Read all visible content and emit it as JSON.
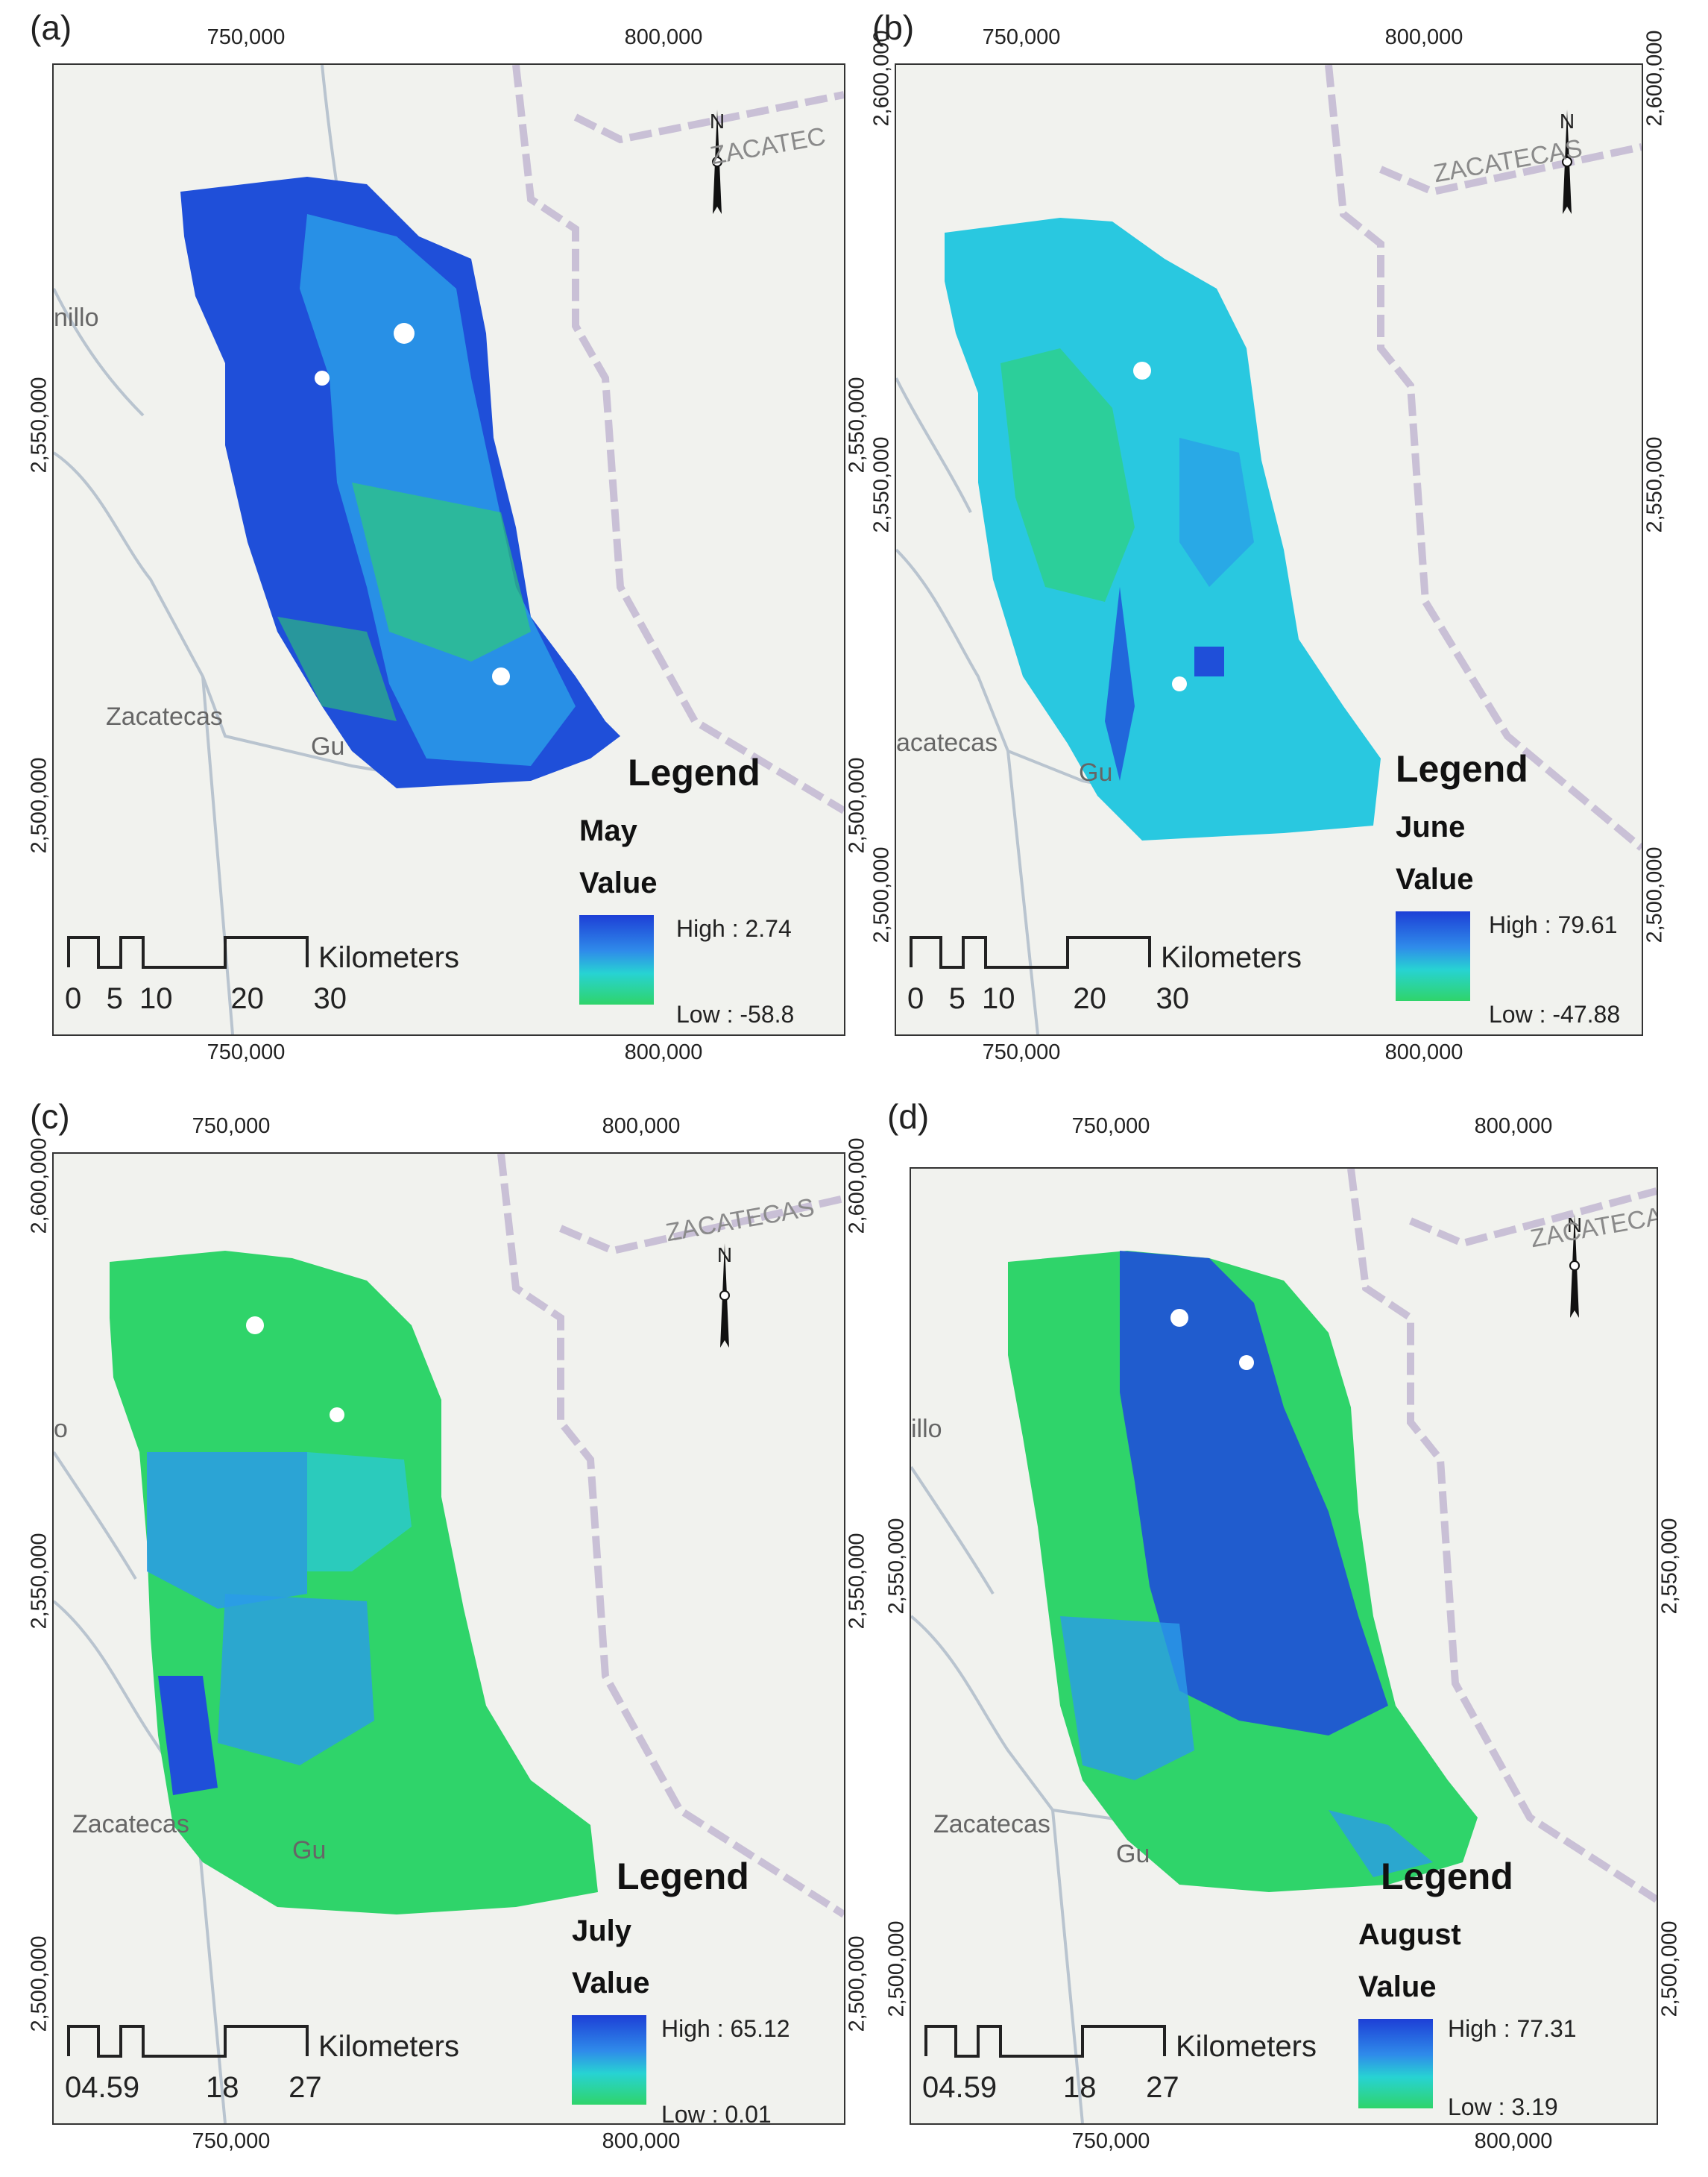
{
  "colors": {
    "high": "#1d3fd6",
    "mid": "#29c8e0",
    "low": "#2fd46a",
    "basemap": "#f1f2ee",
    "road": "#b9c4cf",
    "state_border": "#c9c0d6"
  },
  "panels": [
    {
      "label": "(a)",
      "month": "May",
      "legend_title": "Legend",
      "value_label": "Value",
      "high": "High : 2.74",
      "low": "Low : -58.8",
      "x_ticks": [
        "750,000",
        "800,000"
      ],
      "y_ticks": [
        "2,550,000",
        "2,500,000"
      ],
      "scale_unit": "Kilometers",
      "scale_nums": "0   5  10       20      30",
      "places": [
        "Zacatecas",
        "Gu",
        "nillo",
        "ZACATEC"
      ],
      "north": "N",
      "dominant": "high"
    },
    {
      "label": "(b)",
      "month": "June",
      "legend_title": "Legend",
      "value_label": "Value",
      "high": "High : 79.61",
      "low": "Low : -47.88",
      "x_ticks": [
        "750,000",
        "800,000"
      ],
      "y_ticks": [
        "2,600,000",
        "2,550,000",
        "2,500,000"
      ],
      "scale_unit": "Kilometers",
      "scale_nums": "0   5  10       20      30",
      "places": [
        "acatecas",
        "Gu",
        "",
        "ZACATECAS"
      ],
      "north": "N",
      "dominant": "mid"
    },
    {
      "label": "(c)",
      "month": "July",
      "legend_title": "Legend",
      "value_label": "Value",
      "high": "High : 65.12",
      "low": "Low : 0.01",
      "x_ticks": [
        "750,000",
        "800,000"
      ],
      "y_ticks": [
        "2,600,000",
        "2,550,000",
        "2,500,000"
      ],
      "scale_unit": "Kilometers",
      "scale_nums": "04.59        18      27",
      "places": [
        "Zacatecas",
        "Gu",
        "o",
        "ZACATECAS"
      ],
      "north": "N",
      "dominant": "low"
    },
    {
      "label": "(d)",
      "month": "August",
      "legend_title": "Legend",
      "value_label": "Value",
      "high": "High : 77.31",
      "low": "Low : 3.19",
      "x_ticks": [
        "750,000",
        "800,000"
      ],
      "y_ticks": [
        "2,550,000",
        "2,500,000"
      ],
      "scale_unit": "Kilometers",
      "scale_nums": "04.59        18      27",
      "places": [
        "Zacatecas",
        "Gu",
        "illo",
        "ZACATECA"
      ],
      "north": "N",
      "dominant": "mixed"
    }
  ]
}
